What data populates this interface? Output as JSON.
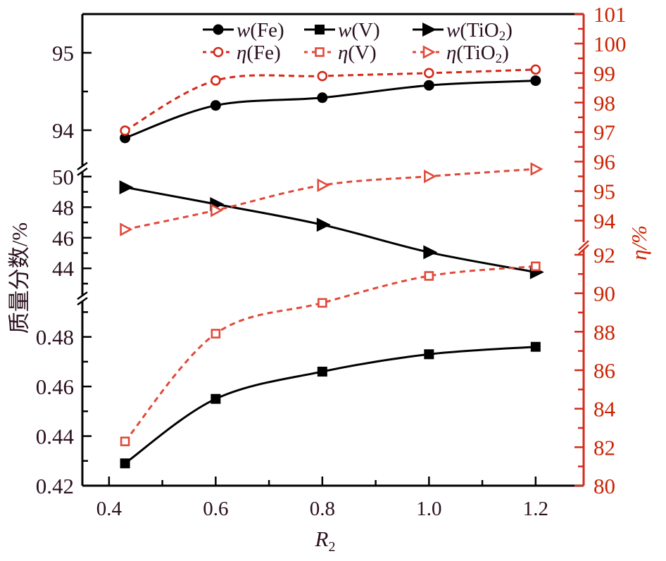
{
  "chart_data": {
    "type": "line",
    "title": "",
    "xlabel": "R",
    "xlabel_sub": "2",
    "ylabel_left": "质量分数/%",
    "ylabel_right": "η/%",
    "xlim": [
      0.35,
      1.29
    ],
    "x_ticks": [
      "0.4",
      "0.6",
      "0.8",
      "1.0",
      "1.2"
    ],
    "x_tick_values": [
      0.4,
      0.6,
      0.8,
      1.0,
      1.2
    ],
    "left_axis_segments": [
      {
        "name": "Fe",
        "range": [
          93.5,
          95.5
        ],
        "ticks": [
          "94",
          "95"
        ],
        "tick_values": [
          94,
          95
        ]
      },
      {
        "name": "TiO2",
        "range": [
          42.4,
          50.5
        ],
        "ticks": [
          "44",
          "46",
          "48",
          "50"
        ],
        "tick_values": [
          44,
          46,
          48,
          50
        ]
      },
      {
        "name": "V",
        "range": [
          0.42,
          0.4938
        ],
        "ticks": [
          "0.42",
          "0.44",
          "0.46",
          "0.48"
        ],
        "tick_values": [
          0.42,
          0.44,
          0.46,
          0.48
        ]
      }
    ],
    "right_axis_segments": [
      {
        "name": "upper",
        "range": [
          93.2,
          101
        ],
        "ticks": [
          "94",
          "95",
          "96",
          "97",
          "98",
          "99",
          "100",
          "101"
        ],
        "tick_values": [
          94,
          95,
          96,
          97,
          98,
          99,
          100,
          101
        ]
      },
      {
        "name": "lower",
        "range": [
          80,
          92.4
        ],
        "ticks": [
          "80",
          "82",
          "84",
          "86",
          "88",
          "90",
          "92"
        ],
        "tick_values": [
          80,
          82,
          84,
          86,
          88,
          90,
          92
        ]
      }
    ],
    "x": [
      0.43,
      0.6,
      0.8,
      1.0,
      1.2
    ],
    "series": [
      {
        "name": "w(Fe)",
        "prefix": "w",
        "element": "Fe",
        "axis": "left",
        "segment": 0,
        "marker": "circle-filled",
        "line": "solid",
        "color": "#000000",
        "values": [
          93.9,
          94.32,
          94.42,
          94.58,
          94.64
        ]
      },
      {
        "name": "w(V)",
        "prefix": "w",
        "element": "V",
        "axis": "left",
        "segment": 2,
        "marker": "square-filled",
        "line": "solid",
        "color": "#000000",
        "values": [
          0.429,
          0.455,
          0.466,
          0.473,
          0.476
        ]
      },
      {
        "name": "w(TiO2)",
        "prefix": "w",
        "element": "TiO",
        "sub": "2",
        "axis": "left",
        "segment": 1,
        "marker": "triangle-right-filled",
        "line": "solid",
        "color": "#000000",
        "values": [
          49.3,
          48.2,
          46.85,
          45.05,
          43.75
        ]
      },
      {
        "name": "η(Fe)",
        "prefix": "η",
        "element": "Fe",
        "axis": "right",
        "segment": 0,
        "marker": "circle-open",
        "line": "dashed",
        "color": "#d42a1a",
        "values": [
          97.05,
          98.75,
          98.9,
          99.0,
          99.12
        ]
      },
      {
        "name": "η(V)",
        "prefix": "η",
        "element": "V",
        "axis": "right",
        "segment": 1,
        "marker": "square-open",
        "line": "dashed",
        "color": "#e04a3a",
        "values": [
          82.3,
          87.9,
          89.5,
          90.9,
          91.4
        ]
      },
      {
        "name": "η(TiO2)",
        "prefix": "η",
        "element": "TiO",
        "sub": "2",
        "axis": "right",
        "segment": 0,
        "marker": "triangle-right-open",
        "line": "dashed",
        "color": "#e04a3a",
        "values": [
          93.7,
          94.35,
          95.2,
          95.5,
          95.75
        ]
      }
    ],
    "legend_position": "top",
    "grid": false,
    "colors": {
      "left_axis": "#000000",
      "right_axis": "#d42a1a",
      "left_text": "#2a0f1f",
      "right_text": "#cc2200"
    }
  }
}
